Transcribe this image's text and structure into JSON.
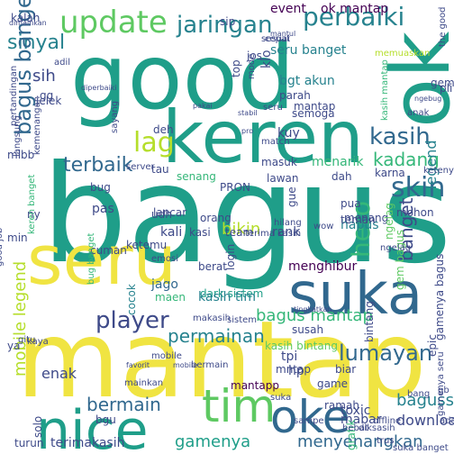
{
  "palette": {
    "yellow": "#f0e442",
    "lime": "#b5de2b",
    "green": "#5ec962",
    "teal": "#1f9e89",
    "blue": "#31688e",
    "indigo": "#3e4a89",
    "navy": "#440154",
    "sea": "#26828e",
    "mint": "#35b779"
  },
  "words": [
    {
      "text": "bagus",
      "color": "teal"
    },
    {
      "text": "mantap",
      "color": "yellow"
    },
    {
      "text": "good",
      "color": "teal"
    },
    {
      "text": "keren",
      "color": "teal"
    },
    {
      "text": "seru",
      "color": "yellow"
    },
    {
      "text": "suka",
      "color": "blue"
    },
    {
      "text": "nice",
      "color": "teal"
    },
    {
      "text": "ok",
      "color": "teal"
    },
    {
      "text": "update",
      "color": "green"
    },
    {
      "text": "tim",
      "color": "green"
    },
    {
      "text": "oke",
      "color": "blue"
    },
    {
      "text": "jaringan",
      "color": "sea"
    },
    {
      "text": "perbaiki",
      "color": "sea"
    },
    {
      "text": "lag",
      "color": "lime"
    },
    {
      "text": "kasih",
      "color": "blue"
    },
    {
      "text": "player",
      "color": "indigo"
    },
    {
      "text": "sinyal",
      "color": "sea"
    },
    {
      "text": "skin",
      "color": "blue"
    },
    {
      "text": "bagus banget",
      "color": "blue"
    },
    {
      "text": "hero",
      "color": "mint"
    },
    {
      "text": "kadang",
      "color": "mint"
    },
    {
      "text": "terbaik",
      "color": "blue"
    },
    {
      "text": "permainan",
      "color": "sea"
    },
    {
      "text": "bagus mantap",
      "color": "mint"
    },
    {
      "text": "lumayan",
      "color": "blue"
    },
    {
      "text": "bermain",
      "color": "blue"
    },
    {
      "text": "gamenya",
      "color": "teal"
    },
    {
      "text": "mobile legend",
      "color": "lime"
    },
    {
      "text": "banget",
      "color": "indigo"
    },
    {
      "text": "bikin",
      "color": "lime"
    },
    {
      "text": "legend",
      "color": "sea"
    },
    {
      "text": "bagusss",
      "color": "sea"
    },
    {
      "text": "menyenangkan",
      "color": "blue"
    },
    {
      "text": "download",
      "color": "indigo"
    },
    {
      "text": "mabar",
      "color": "indigo"
    },
    {
      "text": "ok mantap",
      "color": "navy"
    },
    {
      "text": "event",
      "color": "navy"
    },
    {
      "text": "sih",
      "color": "indigo"
    },
    {
      "text": "bug",
      "color": "indigo"
    },
    {
      "text": "hapus",
      "color": "sea"
    },
    {
      "text": "rank",
      "color": "indigo"
    },
    {
      "text": "menghibur",
      "color": "navy"
    },
    {
      "text": "cocok",
      "color": "sea"
    },
    {
      "text": "kasih bintang",
      "color": "green"
    },
    {
      "text": "mantapp",
      "color": "navy"
    },
    {
      "text": "game",
      "color": "indigo"
    },
    {
      "text": "lancar",
      "color": "indigo"
    },
    {
      "text": "orang",
      "color": "indigo"
    },
    {
      "text": "jago",
      "color": "blue"
    },
    {
      "text": "mntap",
      "color": "indigo"
    },
    {
      "text": "susah",
      "color": "indigo"
    },
    {
      "text": "tpi",
      "color": "indigo"
    },
    {
      "text": "hp",
      "color": "indigo"
    },
    {
      "text": "enak",
      "color": "indigo"
    },
    {
      "text": "solo",
      "color": "indigo"
    },
    {
      "text": "toxic",
      "color": "indigo"
    },
    {
      "text": "turun",
      "color": "indigo"
    },
    {
      "text": "terimakasih",
      "color": "indigo"
    },
    {
      "text": "grafik",
      "color": "mint"
    },
    {
      "text": "trus",
      "color": "indigo"
    },
    {
      "text": "kalah",
      "color": "indigo"
    },
    {
      "text": "seru banget",
      "color": "sea"
    },
    {
      "text": "bgt akun",
      "color": "sea"
    },
    {
      "text": "parah",
      "color": "indigo"
    },
    {
      "text": "semoga",
      "color": "indigo"
    },
    {
      "text": "jos",
      "color": "indigo"
    },
    {
      "text": "top",
      "color": "indigo"
    },
    {
      "text": "gg",
      "color": "indigo"
    },
    {
      "text": "mlbb",
      "color": "indigo"
    },
    {
      "text": "deh",
      "color": "indigo"
    },
    {
      "text": "tau",
      "color": "indigo"
    },
    {
      "text": "senang",
      "color": "mint"
    },
    {
      "text": "PRON",
      "color": "indigo"
    },
    {
      "text": "masuk",
      "color": "indigo"
    },
    {
      "text": "lawan",
      "color": "indigo"
    },
    {
      "text": "ketemu",
      "color": "indigo"
    },
    {
      "text": "pas",
      "color": "indigo"
    },
    {
      "text": "kali",
      "color": "indigo"
    },
    {
      "text": "udh",
      "color": "indigo"
    },
    {
      "text": "cuman",
      "color": "indigo"
    },
    {
      "text": "berat",
      "color": "indigo"
    },
    {
      "text": "maen",
      "color": "mint"
    },
    {
      "text": "teman",
      "color": "indigo"
    },
    {
      "text": "pua",
      "color": "indigo"
    },
    {
      "text": "menang",
      "color": "indigo"
    },
    {
      "text": "ngelag",
      "color": "green"
    },
    {
      "text": "mohon",
      "color": "indigo"
    },
    {
      "text": "karna",
      "color": "indigo"
    },
    {
      "text": "menarik",
      "color": "mint"
    },
    {
      "text": "dah",
      "color": "indigo"
    },
    {
      "text": "login",
      "color": "indigo"
    },
    {
      "text": "team",
      "color": "indigo"
    },
    {
      "text": "gem bagus",
      "color": "green"
    },
    {
      "text": "dark sistem",
      "color": "teal"
    },
    {
      "text": "kasih tim",
      "color": "sea"
    },
    {
      "text": "biar",
      "color": "indigo"
    },
    {
      "text": "bintang",
      "color": "indigo"
    },
    {
      "text": "ramah",
      "color": "indigo"
    },
    {
      "text": "bgu",
      "color": "indigo"
    },
    {
      "text": "gamenya bagus",
      "color": "indigo"
    },
    {
      "text": "klo",
      "color": "indigo"
    },
    {
      "text": "pli",
      "color": "indigo"
    },
    {
      "text": "gem",
      "color": "indigo"
    },
    {
      "text": "ya",
      "color": "indigo"
    },
    {
      "text": "kasi",
      "color": "indigo"
    },
    {
      "text": "gue",
      "color": "indigo"
    },
    {
      "text": "min",
      "color": "indigo"
    },
    {
      "text": "ny",
      "color": "indigo"
    },
    {
      "text": "epic",
      "color": "indigo"
    },
    {
      "text": "jelek",
      "color": "indigo"
    },
    {
      "text": "mantap",
      "color": "indigo"
    },
    {
      "text": "kuy",
      "color": "indigo"
    },
    {
      "text": "sip",
      "color": "indigo"
    },
    {
      "text": "mantul",
      "color": "indigo"
    },
    {
      "text": "memuaskan",
      "color": "lime"
    },
    {
      "text": "pro",
      "color": "indigo"
    },
    {
      "text": "stabil",
      "color": "indigo"
    },
    {
      "text": "ngebug",
      "color": "indigo"
    },
    {
      "text": "pakai",
      "color": "indigo"
    },
    {
      "text": "diperbaiki",
      "color": "indigo"
    },
    {
      "text": "keren banget",
      "color": "mint"
    },
    {
      "text": "bug banget",
      "color": "mint"
    },
    {
      "text": "kasih mantap",
      "color": "mint"
    },
    {
      "text": "tingkatkan",
      "color": "indigo"
    },
    {
      "text": "hilang",
      "color": "indigo"
    },
    {
      "text": "mobile",
      "color": "indigo"
    },
    {
      "text": "favorit",
      "color": "indigo"
    },
    {
      "text": "kaya",
      "color": "indigo"
    },
    {
      "text": "hebat",
      "color": "indigo"
    },
    {
      "text": "sampe",
      "color": "indigo"
    },
    {
      "text": "offline",
      "color": "indigo"
    },
    {
      "text": "bang",
      "color": "indigo"
    },
    {
      "text": "suka banget",
      "color": "indigo"
    },
    {
      "text": "diksasih",
      "color": "indigo"
    },
    {
      "text": "good job",
      "color": "indigo"
    },
    {
      "text": "dimainkan",
      "color": "indigo"
    },
    {
      "text": "pertandingan",
      "color": "indigo"
    },
    {
      "text": "kemenangan",
      "color": "indigo"
    },
    {
      "text": "langsung",
      "color": "indigo"
    },
    {
      "text": "sesuai",
      "color": "indigo"
    },
    {
      "text": "ketenyaken",
      "color": "indigo"
    },
    {
      "text": "the good",
      "color": "indigo"
    },
    {
      "text": "server",
      "color": "indigo"
    },
    {
      "text": "gitu",
      "color": "indigo"
    },
    {
      "text": "sayang",
      "color": "indigo"
    },
    {
      "text": "match",
      "color": "indigo"
    },
    {
      "text": "mainkan",
      "color": "indigo"
    },
    {
      "text": "seru",
      "color": "indigo"
    },
    {
      "text": "mode",
      "color": "indigo"
    },
    {
      "text": "adil",
      "color": "indigo"
    },
    {
      "text": "anak",
      "color": "indigo"
    },
    {
      "text": "terima kasih",
      "color": "indigo"
    },
    {
      "text": "wow",
      "color": "indigo"
    },
    {
      "text": "cepat",
      "color": "indigo"
    },
    {
      "text": "emosi",
      "color": "indigo"
    },
    {
      "text": "sistem",
      "color": "indigo"
    },
    {
      "text": "ngelag",
      "color": "indigo"
    },
    {
      "text": "gamenya seru",
      "color": "indigo"
    },
    {
      "text": "makasih",
      "color": "indigo"
    },
    {
      "text": "mobile",
      "color": "indigo"
    },
    {
      "text": "suka",
      "color": "indigo"
    },
    {
      "text": "bermain",
      "color": "indigo"
    },
    {
      "text": "ada",
      "color": "indigo"
    },
    {
      "text": "gb",
      "color": "indigo"
    }
  ]
}
